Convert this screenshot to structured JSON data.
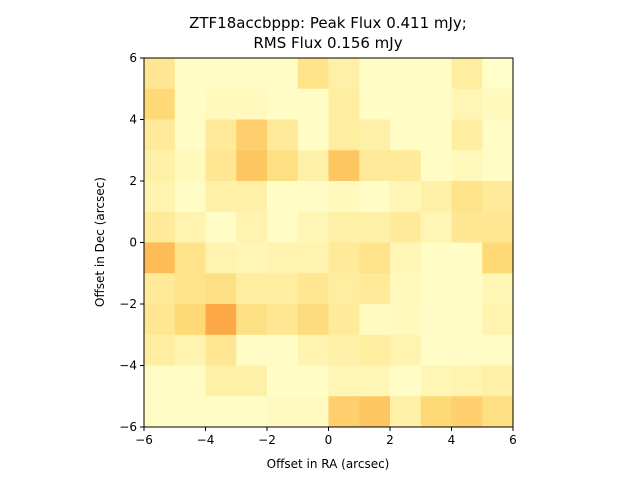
{
  "chart_data": {
    "type": "heatmap",
    "title_line1": "ZTF18accbppp: Peak Flux 0.411 mJy;",
    "title_line2": "RMS Flux 0.156 mJy",
    "xlabel": "Offset in RA (arcsec)",
    "ylabel": "Offset in Dec (arcsec)",
    "xlim": [
      -6,
      6
    ],
    "ylim": [
      -6,
      6
    ],
    "xticks": [
      -6,
      -4,
      -2,
      0,
      2,
      4,
      6
    ],
    "yticks": [
      -6,
      -4,
      -2,
      0,
      2,
      4,
      6
    ],
    "xtick_labels": [
      "−6",
      "−4",
      "−2",
      "0",
      "2",
      "4",
      "6"
    ],
    "ytick_labels": [
      "−6",
      "−4",
      "−2",
      "0",
      "2",
      "4",
      "6"
    ],
    "colormap": "YlOrRd",
    "color_low": "#ffffcc",
    "color_high": "#fd8d3c",
    "grid": false,
    "z_rows_top_to_bottom": [
      [
        0.4,
        0.05,
        0.05,
        0.05,
        0.05,
        0.45,
        0.25,
        0.05,
        0.05,
        0.05,
        0.3,
        0.03
      ],
      [
        0.6,
        0.05,
        0.1,
        0.1,
        0.05,
        0.05,
        0.3,
        0.05,
        0.05,
        0.05,
        0.15,
        0.1
      ],
      [
        0.35,
        0.05,
        0.35,
        0.65,
        0.35,
        0.05,
        0.3,
        0.25,
        0.05,
        0.05,
        0.3,
        0.05
      ],
      [
        0.25,
        0.1,
        0.4,
        0.7,
        0.5,
        0.25,
        0.7,
        0.35,
        0.35,
        0.05,
        0.12,
        0.05
      ],
      [
        0.2,
        0.05,
        0.25,
        0.25,
        0.05,
        0.05,
        0.1,
        0.05,
        0.15,
        0.25,
        0.45,
        0.35
      ],
      [
        0.35,
        0.2,
        0.05,
        0.2,
        0.05,
        0.15,
        0.25,
        0.25,
        0.35,
        0.15,
        0.4,
        0.4
      ],
      [
        0.75,
        0.45,
        0.2,
        0.15,
        0.2,
        0.2,
        0.35,
        0.45,
        0.15,
        0.05,
        0.05,
        0.6
      ],
      [
        0.35,
        0.45,
        0.5,
        0.3,
        0.3,
        0.4,
        0.3,
        0.35,
        0.12,
        0.05,
        0.05,
        0.15
      ],
      [
        0.4,
        0.6,
        0.85,
        0.5,
        0.4,
        0.55,
        0.35,
        0.08,
        0.1,
        0.05,
        0.05,
        0.2
      ],
      [
        0.3,
        0.2,
        0.4,
        0.05,
        0.05,
        0.2,
        0.25,
        0.3,
        0.2,
        0.05,
        0.05,
        0.05
      ],
      [
        0.05,
        0.05,
        0.25,
        0.25,
        0.05,
        0.05,
        0.15,
        0.15,
        0.05,
        0.15,
        0.2,
        0.25
      ],
      [
        0.05,
        0.05,
        0.05,
        0.05,
        0.08,
        0.08,
        0.65,
        0.7,
        0.25,
        0.6,
        0.65,
        0.5
      ]
    ]
  }
}
